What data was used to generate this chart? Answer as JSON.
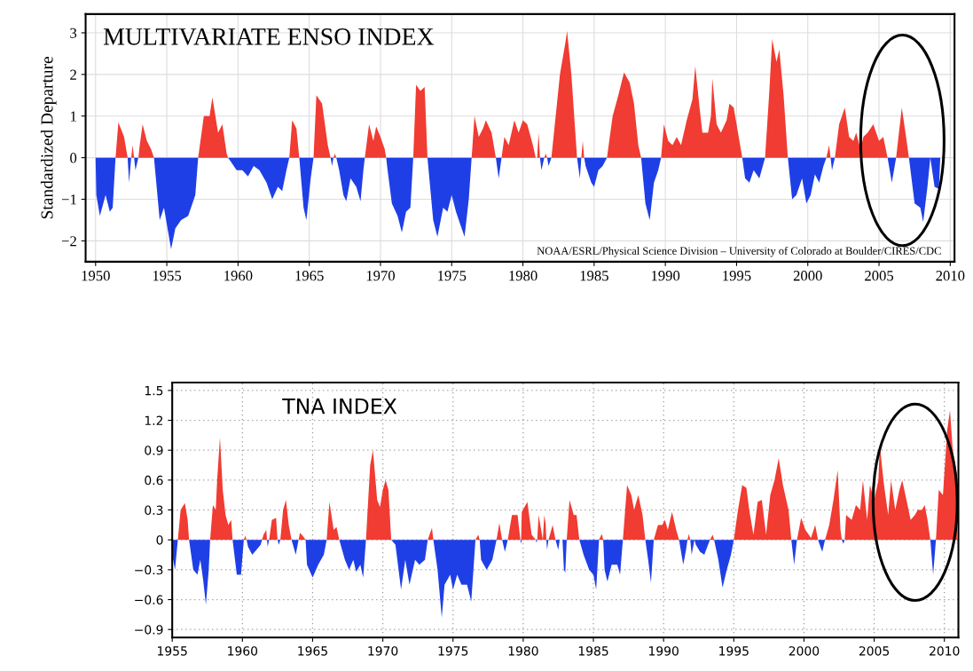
{
  "chart_data": [
    {
      "type": "area",
      "title": "MULTIVARIATE ENSO INDEX",
      "ylabel": "Standardized Departure",
      "annotations": [
        "NOAA/ESRL/Physical Science Division – University of Colorado at Boulder/CIRES/CDC"
      ],
      "xlim": [
        1949.3,
        2010.3
      ],
      "ylim": [
        -2.5,
        3.45
      ],
      "xticks": [
        1950,
        1955,
        1960,
        1965,
        1970,
        1975,
        1980,
        1985,
        1990,
        1995,
        2000,
        2005,
        2010
      ],
      "yticks": [
        {
          "value": -2,
          "label": "−2"
        },
        {
          "value": -1,
          "label": "−1"
        },
        0,
        1,
        2,
        3
      ],
      "grid": true,
      "series": [
        {
          "color": "#f03c32",
          "x": [
            1951.4,
            1951.6,
            1952.0,
            1952.2,
            1952.25,
            1952.5,
            1952.6,
            1952.7,
            1953.0,
            1953.1,
            1953.3,
            1953.6,
            1953.9,
            1954.1,
            1957.2,
            1957.6,
            1958.0,
            1958.2,
            1958.6,
            1958.9,
            1959.2,
            1959.3,
            1963.6,
            1963.8,
            1964.1,
            1964.3,
            1965.3,
            1965.5,
            1965.9,
            1966.3,
            1966.5,
            1966.7,
            1966.8,
            1966.9,
            1968.9,
            1969.2,
            1969.5,
            1969.7,
            1970.0,
            1970.3,
            1970.4,
            1972.3,
            1972.5,
            1972.8,
            1973.1,
            1973.3,
            1976.4,
            1976.6,
            1976.9,
            1977.2,
            1977.4,
            1977.8,
            1978.1,
            1978.5,
            1978.7,
            1979.0,
            1979.4,
            1979.7,
            1980.0,
            1980.3,
            1980.7,
            1980.9,
            1981.0,
            1981.1,
            1981.2,
            1981.5,
            1981.6,
            1981.7,
            1982.0,
            1982.3,
            1982.6,
            1983.0,
            1983.1,
            1983.4,
            1983.6,
            1983.8,
            1984.1,
            1984.2,
            1984.3,
            1985.9,
            1986.3,
            1986.7,
            1987.1,
            1987.5,
            1987.8,
            1988.1,
            1988.3,
            1989.7,
            1989.9,
            1990.2,
            1990.5,
            1990.8,
            1991.1,
            1991.5,
            1991.9,
            1992.1,
            1992.4,
            1992.6,
            1993.0,
            1993.2,
            1993.3,
            1993.6,
            1993.9,
            1994.3,
            1994.5,
            1994.8,
            1995.1,
            1995.4,
            1997.0,
            1997.3,
            1997.5,
            1997.8,
            1998.0,
            1998.3,
            1998.6,
            2001.3,
            2001.5,
            2001.6,
            2001.9,
            2002.2,
            2002.6,
            2002.9,
            2003.2,
            2003.4,
            2003.7,
            2003.9,
            2004.2,
            2004.6,
            2005.0,
            2005.3,
            2005.6,
            2006.2,
            2006.6,
            2006.9,
            2007.1
          ],
          "values": [
            0,
            0.85,
            0.5,
            0.1,
            0,
            0,
            0.3,
            0,
            0,
            0.3,
            0.8,
            0.4,
            0.2,
            0,
            0,
            1.0,
            1.0,
            1.45,
            0.6,
            0.8,
            0.1,
            0,
            0,
            0.9,
            0.7,
            0,
            0,
            1.5,
            1.3,
            0.3,
            0,
            0,
            0.1,
            0,
            0,
            0.8,
            0.4,
            0.75,
            0.5,
            0.2,
            0,
            0,
            1.75,
            1.6,
            1.7,
            0,
            0,
            1.0,
            0.5,
            0.7,
            0.9,
            0.6,
            0,
            0,
            0.5,
            0.3,
            0.9,
            0.6,
            0.9,
            0.8,
            0.3,
            0,
            0,
            0.6,
            0,
            0,
            0.1,
            0,
            0,
            1.0,
            2.0,
            2.8,
            3.05,
            2.0,
            1.0,
            0,
            0,
            0.4,
            0,
            0,
            1.0,
            1.5,
            2.05,
            1.8,
            1.3,
            0.3,
            0,
            0,
            0.8,
            0.4,
            0.3,
            0.5,
            0.3,
            0.9,
            1.4,
            2.2,
            1.2,
            0.6,
            0.6,
            1.0,
            1.9,
            0.8,
            0.6,
            0.9,
            1.3,
            1.2,
            0.6,
            0,
            0,
            1.6,
            2.85,
            2.3,
            2.6,
            1.5,
            0,
            0,
            0.3,
            0,
            0,
            0.8,
            1.2,
            0.5,
            0.4,
            0.6,
            0.2,
            0.5,
            0.6,
            0.8,
            0.4,
            0.5,
            0,
            0,
            1.2,
            0.5,
            0
          ]
        },
        {
          "color": "#1f3fe6",
          "x": [
            1950.0,
            1950.05,
            1950.3,
            1950.7,
            1951.0,
            1951.2,
            1951.4,
            1952.25,
            1952.35,
            1952.5,
            1952.7,
            1952.8,
            1953.0,
            1954.1,
            1954.5,
            1954.8,
            1955.3,
            1955.6,
            1956.0,
            1956.5,
            1957.0,
            1957.2,
            1959.3,
            1959.5,
            1959.9,
            1960.3,
            1960.7,
            1961.1,
            1961.5,
            1962.0,
            1962.4,
            1962.8,
            1963.1,
            1963.4,
            1963.6,
            1964.3,
            1964.6,
            1964.8,
            1965.1,
            1965.3,
            1966.5,
            1966.6,
            1966.7,
            1966.9,
            1967.1,
            1967.4,
            1967.6,
            1967.9,
            1968.3,
            1968.6,
            1968.8,
            1968.9,
            1970.4,
            1970.5,
            1970.8,
            1971.2,
            1971.5,
            1971.8,
            1972.1,
            1972.3,
            1973.3,
            1973.7,
            1974.0,
            1974.4,
            1974.7,
            1975.0,
            1975.3,
            1975.6,
            1975.9,
            1976.2,
            1976.4,
            1978.1,
            1978.3,
            1978.5,
            1981.2,
            1981.3,
            1981.5,
            1981.7,
            1981.8,
            1982.0,
            1983.8,
            1984.0,
            1984.1,
            1984.3,
            1984.4,
            1984.8,
            1985.0,
            1985.3,
            1985.6,
            1985.9,
            1988.3,
            1988.6,
            1988.9,
            1989.2,
            1989.5,
            1989.7,
            1995.4,
            1995.6,
            1995.9,
            1996.2,
            1996.6,
            1997.0,
            1998.6,
            1998.9,
            1999.2,
            1999.6,
            1999.9,
            2000.2,
            2000.5,
            2000.8,
            2001.1,
            2001.3,
            2001.6,
            2001.7,
            2001.9,
            2005.6,
            2005.9,
            2006.2,
            2007.1,
            2007.5,
            2007.9,
            2008.1,
            2008.4,
            2008.6,
            2008.9,
            2009.2,
            2009.3
          ],
          "values": [
            0,
            -0.9,
            -1.4,
            -0.9,
            -1.3,
            -1.2,
            0,
            0,
            -0.6,
            0,
            0,
            -0.3,
            0,
            0,
            -1.5,
            -1.2,
            -2.2,
            -1.7,
            -1.5,
            -1.4,
            -0.9,
            0,
            0,
            -0.1,
            -0.3,
            -0.3,
            -0.45,
            -0.2,
            -0.3,
            -0.6,
            -1.0,
            -0.7,
            -0.8,
            -0.3,
            0,
            0,
            -1.2,
            -1.5,
            -0.5,
            0,
            0,
            -0.2,
            0,
            0,
            -0.3,
            -0.9,
            -1.05,
            -0.5,
            -0.7,
            -1.05,
            -0.3,
            0,
            0,
            -0.3,
            -1.1,
            -1.4,
            -1.8,
            -1.3,
            -1.2,
            0,
            0,
            -1.5,
            -1.9,
            -1.2,
            -1.3,
            -0.9,
            -1.3,
            -1.6,
            -1.9,
            -1.0,
            0,
            0,
            -0.5,
            0,
            0,
            -0.3,
            0,
            0,
            -0.2,
            0,
            0,
            -0.5,
            0,
            0,
            -0.2,
            -0.6,
            -0.7,
            -0.3,
            -0.2,
            0,
            0,
            -1.1,
            -1.5,
            -0.6,
            -0.3,
            0,
            0,
            -0.5,
            -0.6,
            -0.3,
            -0.5,
            0,
            0,
            -1.0,
            -0.9,
            -0.5,
            -1.1,
            -0.9,
            -0.4,
            -0.6,
            -0.2,
            0,
            0,
            -0.3,
            0,
            0,
            -0.6,
            0,
            0,
            -1.1,
            -1.2,
            -1.55,
            -0.7,
            0,
            -0.7,
            -0.75,
            0
          ]
        }
      ]
    },
    {
      "type": "area",
      "title": "TNA INDEX",
      "xlim": [
        1955,
        2011
      ],
      "ylim": [
        -0.98,
        1.58
      ],
      "xticks": [
        1955,
        1960,
        1965,
        1970,
        1975,
        1980,
        1985,
        1990,
        1995,
        2000,
        2005,
        2010
      ],
      "yticks": [
        {
          "value": -0.9,
          "label": "−0.9"
        },
        {
          "value": -0.6,
          "label": "−0.6"
        },
        {
          "value": -0.3,
          "label": "−0.3"
        },
        0,
        0.3,
        0.6,
        0.9,
        1.2,
        1.5
      ],
      "grid": true,
      "series": [
        {
          "color": "#f03c32",
          "x": [
            1955.4,
            1955.6,
            1955.9,
            1956.1,
            1956.2,
            1957.7,
            1957.9,
            1958.1,
            1958.2,
            1958.4,
            1958.6,
            1958.8,
            1959.0,
            1959.2,
            1959.3,
            1960.1,
            1960.2,
            1960.3,
            1961.4,
            1961.5,
            1961.7,
            1961.75,
            1961.9,
            1962.1,
            1962.4,
            1962.5,
            1962.7,
            1962.9,
            1963.1,
            1963.3,
            1963.5,
            1964.0,
            1964.1,
            1964.3,
            1964.5,
            1966.0,
            1966.2,
            1966.5,
            1966.7,
            1966.9,
            1968.8,
            1969.1,
            1969.3,
            1969.6,
            1969.8,
            1970.0,
            1970.2,
            1970.4,
            1970.6,
            1973.2,
            1973.5,
            1973.6,
            1976.6,
            1976.8,
            1976.9,
            1978.1,
            1978.3,
            1978.5,
            1978.9,
            1979.2,
            1979.6,
            1979.8,
            1979.85,
            1979.9,
            1980.3,
            1980.6,
            1980.9,
            1981.0,
            1981.1,
            1981.4,
            1981.5,
            1981.6,
            1981.65,
            1981.8,
            1982.1,
            1982.3,
            1982.6,
            1982.8,
            1983.1,
            1983.3,
            1983.6,
            1983.8,
            1984.0,
            1985.4,
            1985.6,
            1985.7,
            1987.1,
            1987.4,
            1987.7,
            1987.9,
            1988.2,
            1988.5,
            1988.7,
            1989.3,
            1989.6,
            1989.9,
            1990.1,
            1990.3,
            1990.6,
            1990.9,
            1991.1,
            1991.7,
            1991.8,
            1991.9,
            1993.3,
            1993.5,
            1993.6,
            1995.0,
            1995.3,
            1995.6,
            1995.9,
            1996.1,
            1996.4,
            1996.7,
            1997.0,
            1997.3,
            1997.6,
            1997.9,
            1998.2,
            1998.5,
            1998.9,
            1999.1,
            1999.5,
            1999.8,
            2000.1,
            2000.5,
            2000.8,
            2001.0,
            2001.5,
            2001.8,
            2002.1,
            2002.4,
            2002.6,
            2002.7,
            2002.9,
            2003.0,
            2003.4,
            2003.7,
            2004.0,
            2004.2,
            2004.5,
            2004.7,
            2005.0,
            2005.3,
            2005.4,
            2005.7,
            2006.0,
            2006.2,
            2006.5,
            2006.8,
            2007.0,
            2007.3,
            2007.6,
            2007.9,
            2008.1,
            2008.4,
            2008.6,
            2008.8,
            2009.0,
            2009.4,
            2009.6,
            2009.9,
            2010.2,
            2010.4,
            2010.6,
            2010.9
          ],
          "values": [
            0,
            0.3,
            0.37,
            0.2,
            0,
            0,
            0.35,
            0.3,
            0.6,
            1.03,
            0.5,
            0.25,
            0.15,
            0.2,
            0,
            0,
            0.04,
            0,
            0,
            0.05,
            0.1,
            0,
            0,
            0.2,
            0.22,
            0,
            0,
            0.3,
            0.4,
            0.15,
            0,
            0,
            0.07,
            0.04,
            0,
            0,
            0.38,
            0.1,
            0.13,
            0,
            0,
            0.75,
            0.9,
            0.4,
            0.33,
            0.5,
            0.6,
            0.5,
            0,
            0,
            0.12,
            0,
            0,
            0.05,
            0,
            0,
            0.17,
            0,
            0,
            0.25,
            0.25,
            0,
            0,
            0.28,
            0.38,
            0.05,
            0,
            0,
            0.25,
            0,
            0.25,
            0.16,
            0,
            0,
            0.15,
            0,
            0,
            0,
            0,
            0.4,
            0.25,
            0.25,
            0,
            0,
            0.06,
            0,
            0,
            0.55,
            0.45,
            0.3,
            0.45,
            0.25,
            0,
            0,
            0.15,
            0.15,
            0.2,
            0.1,
            0.28,
            0.1,
            0,
            0,
            0.06,
            0,
            0,
            0.05,
            0,
            0,
            0.3,
            0.55,
            0.52,
            0.3,
            0.05,
            0.38,
            0.4,
            0.05,
            0.45,
            0.6,
            0.82,
            0.55,
            0.3,
            0,
            0,
            0.22,
            0.1,
            0.02,
            0.15,
            0,
            0,
            0.15,
            0.4,
            0.7,
            0.1,
            0,
            0,
            0.25,
            0.2,
            0.35,
            0.3,
            0.6,
            0.2,
            0.55,
            0.4,
            0.6,
            0.95,
            0.55,
            0.25,
            0.6,
            0.3,
            0.5,
            0.6,
            0.4,
            0.2,
            0.25,
            0.3,
            0.3,
            0.35,
            0.2,
            0,
            0,
            0.5,
            0.45,
            1.1,
            1.3,
            0.9,
            0.65
          ]
        },
        {
          "color": "#1f3fe6",
          "x": [
            1955.0,
            1955.2,
            1955.4,
            1956.2,
            1956.5,
            1956.8,
            1957.0,
            1957.2,
            1957.4,
            1957.6,
            1957.7,
            1959.3,
            1959.6,
            1959.9,
            1960.1,
            1960.3,
            1960.4,
            1960.7,
            1961.0,
            1961.3,
            1961.4,
            1961.75,
            1961.8,
            1961.9,
            1962.5,
            1962.6,
            1962.7,
            1963.5,
            1963.8,
            1964.0,
            1964.5,
            1964.6,
            1965.0,
            1965.4,
            1965.8,
            1966.0,
            1966.9,
            1967.3,
            1967.6,
            1967.9,
            1968.1,
            1968.4,
            1968.6,
            1968.8,
            1970.6,
            1970.9,
            1971.3,
            1971.6,
            1971.9,
            1972.3,
            1972.6,
            1973.0,
            1973.2,
            1973.6,
            1973.9,
            1974.2,
            1974.4,
            1974.8,
            1975.0,
            1975.3,
            1975.6,
            1976.0,
            1976.3,
            1976.6,
            1976.9,
            1977.0,
            1977.4,
            1977.8,
            1978.1,
            1978.5,
            1978.7,
            1978.9,
            1979.8,
            1979.85,
            1979.9,
            1980.9,
            1980.95,
            1981.0,
            1981.65,
            1981.7,
            1981.8,
            1982.3,
            1982.5,
            1982.6,
            1982.8,
            1982.9,
            1983.0,
            1983.1,
            1984.0,
            1984.3,
            1984.7,
            1985.0,
            1985.2,
            1985.4,
            1985.7,
            1985.8,
            1986.0,
            1986.3,
            1986.7,
            1986.9,
            1987.1,
            1988.7,
            1988.9,
            1989.1,
            1989.3,
            1991.1,
            1991.4,
            1991.6,
            1991.7,
            1991.9,
            1992.0,
            1992.2,
            1992.3,
            1992.6,
            1992.9,
            1993.3,
            1993.6,
            1993.9,
            1994.2,
            1994.5,
            1994.8,
            1995.0,
            1999.1,
            1999.3,
            1999.5,
            2001.0,
            2001.3,
            2001.5,
            2002.7,
            2002.8,
            2002.9,
            2009.0,
            2009.2,
            2009.4
          ],
          "values": [
            -0.15,
            -0.3,
            0,
            0,
            -0.3,
            -0.35,
            -0.2,
            -0.4,
            -0.65,
            -0.3,
            0,
            0,
            -0.35,
            -0.35,
            0,
            0,
            -0.07,
            -0.15,
            -0.1,
            -0.05,
            0,
            0,
            -0.07,
            0,
            0,
            -0.05,
            0,
            0,
            -0.15,
            0,
            0,
            -0.25,
            -0.38,
            -0.25,
            -0.15,
            0,
            0,
            -0.2,
            -0.3,
            -0.2,
            -0.32,
            -0.25,
            -0.38,
            0,
            0,
            -0.05,
            -0.5,
            -0.2,
            -0.45,
            -0.2,
            -0.25,
            -0.2,
            0,
            0,
            -0.3,
            -0.78,
            -0.45,
            -0.35,
            -0.5,
            -0.35,
            -0.45,
            -0.45,
            -0.62,
            0,
            0,
            -0.2,
            -0.3,
            -0.2,
            0,
            0,
            -0.12,
            0,
            0,
            -0.04,
            0,
            0,
            -0.03,
            0,
            0,
            -0.1,
            0,
            0,
            -0.1,
            0,
            0,
            -0.3,
            -0.33,
            0,
            0,
            -0.15,
            -0.3,
            -0.35,
            -0.5,
            0,
            0,
            -0.3,
            -0.42,
            -0.25,
            -0.25,
            -0.35,
            0,
            0,
            -0.2,
            -0.43,
            0,
            0,
            -0.25,
            -0.1,
            0,
            0,
            -0.15,
            0,
            -0.05,
            -0.12,
            -0.15,
            0,
            0,
            -0.2,
            -0.48,
            -0.3,
            -0.15,
            0,
            0,
            -0.25,
            0,
            0,
            -0.12,
            0,
            0,
            -0.04,
            0,
            0,
            -0.35,
            0
          ]
        }
      ]
    }
  ]
}
